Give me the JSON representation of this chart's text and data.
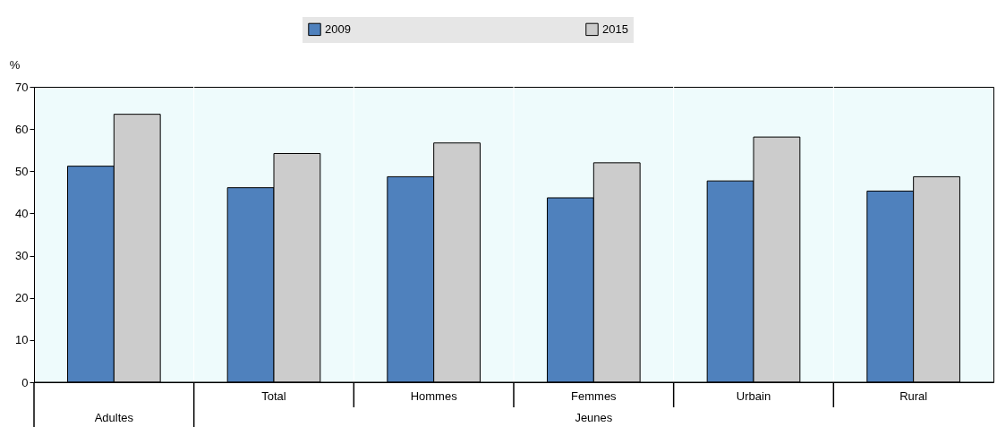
{
  "chart_data": {
    "type": "bar",
    "categories": [
      null,
      "Total",
      "Hommes",
      "Femmes",
      "Urbain",
      "Rural"
    ],
    "series": [
      {
        "name": "2009",
        "color": "#4f81bd",
        "values": [
          51.2,
          46.1,
          48.7,
          43.7,
          47.7,
          45.3
        ]
      },
      {
        "name": "2015",
        "color": "#cccccc",
        "values": [
          63.5,
          54.2,
          56.7,
          52.0,
          58.1,
          48.7
        ]
      }
    ],
    "ylabel": "%",
    "ylim": [
      0,
      70
    ],
    "yticks": [
      0,
      10,
      20,
      30,
      40,
      50,
      60,
      70
    ],
    "legend": "top",
    "grid": false,
    "annotations": [
      "Adultes",
      "Jeunes"
    ]
  }
}
